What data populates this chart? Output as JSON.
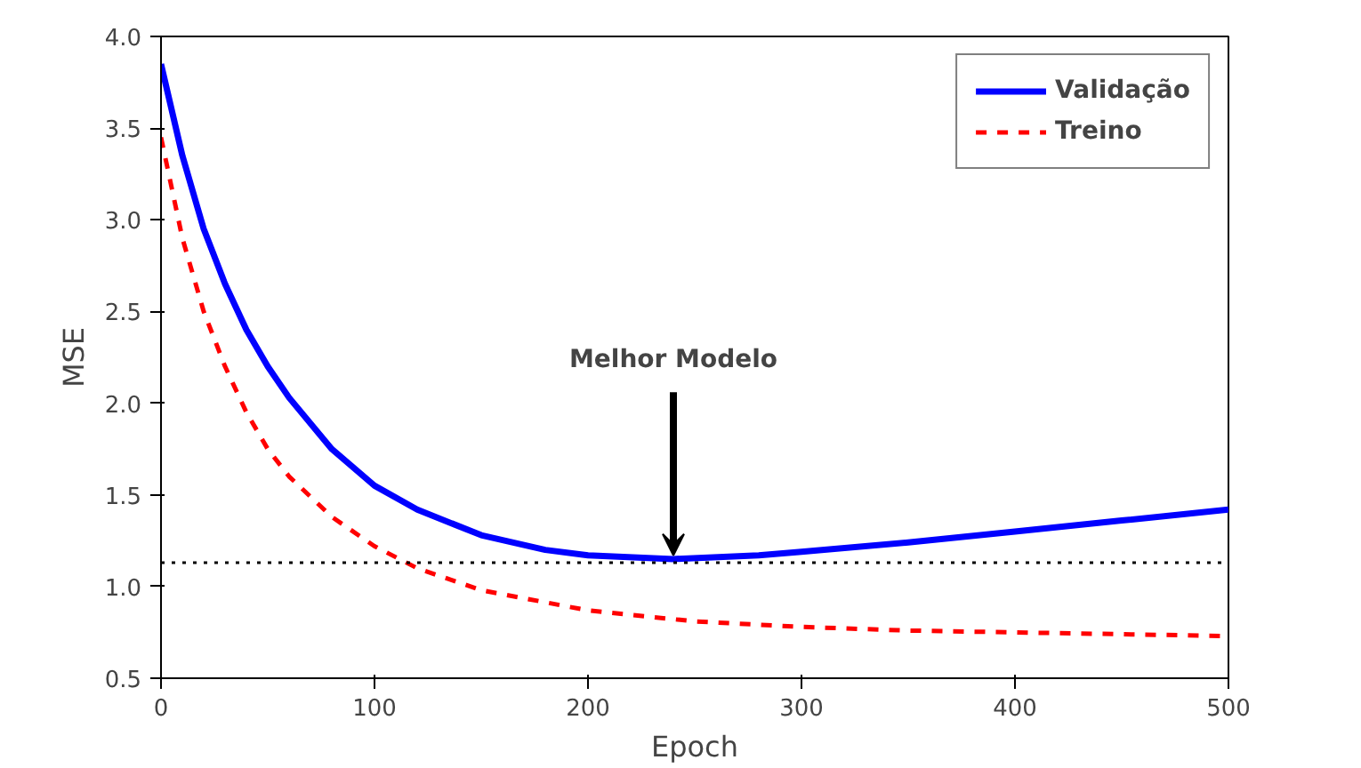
{
  "chart_data": {
    "type": "line",
    "xlabel": "Epoch",
    "ylabel": "MSE",
    "xlim": [
      0,
      500
    ],
    "xticks": [
      0,
      100,
      200,
      300,
      400,
      500
    ],
    "ylim": [
      0.5,
      4.0
    ],
    "yticks": [
      {
        "value": 0.5,
        "label": "0.5"
      },
      {
        "value": 1.0,
        "label": "1.0"
      },
      {
        "value": 1.5,
        "label": "1.5"
      },
      {
        "value": 2.0,
        "label": "2.0"
      },
      {
        "value": 2.5,
        "label": "2.5"
      },
      {
        "value": 3.0,
        "label": "3.0"
      },
      {
        "value": 3.5,
        "label": "3.5"
      },
      {
        "value": 4.0,
        "label": "4.0"
      }
    ],
    "grid": false,
    "legend": "top right",
    "series": [
      {
        "name": "Validação",
        "color": "#0000ff",
        "line_style": "solid",
        "x": [
          0,
          10,
          20,
          30,
          40,
          50,
          60,
          80,
          100,
          120,
          150,
          180,
          200,
          240,
          280,
          300,
          350,
          400,
          450,
          500
        ],
        "values": [
          3.85,
          3.35,
          2.95,
          2.65,
          2.4,
          2.2,
          2.03,
          1.75,
          1.55,
          1.42,
          1.28,
          1.2,
          1.17,
          1.15,
          1.17,
          1.19,
          1.24,
          1.3,
          1.36,
          1.42
        ]
      },
      {
        "name": "Treino",
        "color": "#ff0000",
        "line_style": "dashed",
        "x": [
          0,
          10,
          20,
          30,
          40,
          50,
          60,
          80,
          100,
          120,
          150,
          200,
          250,
          300,
          350,
          400,
          450,
          500
        ],
        "values": [
          3.45,
          2.9,
          2.5,
          2.2,
          1.95,
          1.75,
          1.6,
          1.38,
          1.22,
          1.1,
          0.98,
          0.87,
          0.81,
          0.78,
          0.76,
          0.75,
          0.74,
          0.73
        ]
      }
    ],
    "ref_lines": [
      {
        "axis": "y",
        "value": 1.13,
        "line_style": "dotted",
        "color": "#000000"
      }
    ],
    "annotations": [
      {
        "text": "Melhor Modelo",
        "x": 240,
        "y": 1.15
      }
    ]
  }
}
